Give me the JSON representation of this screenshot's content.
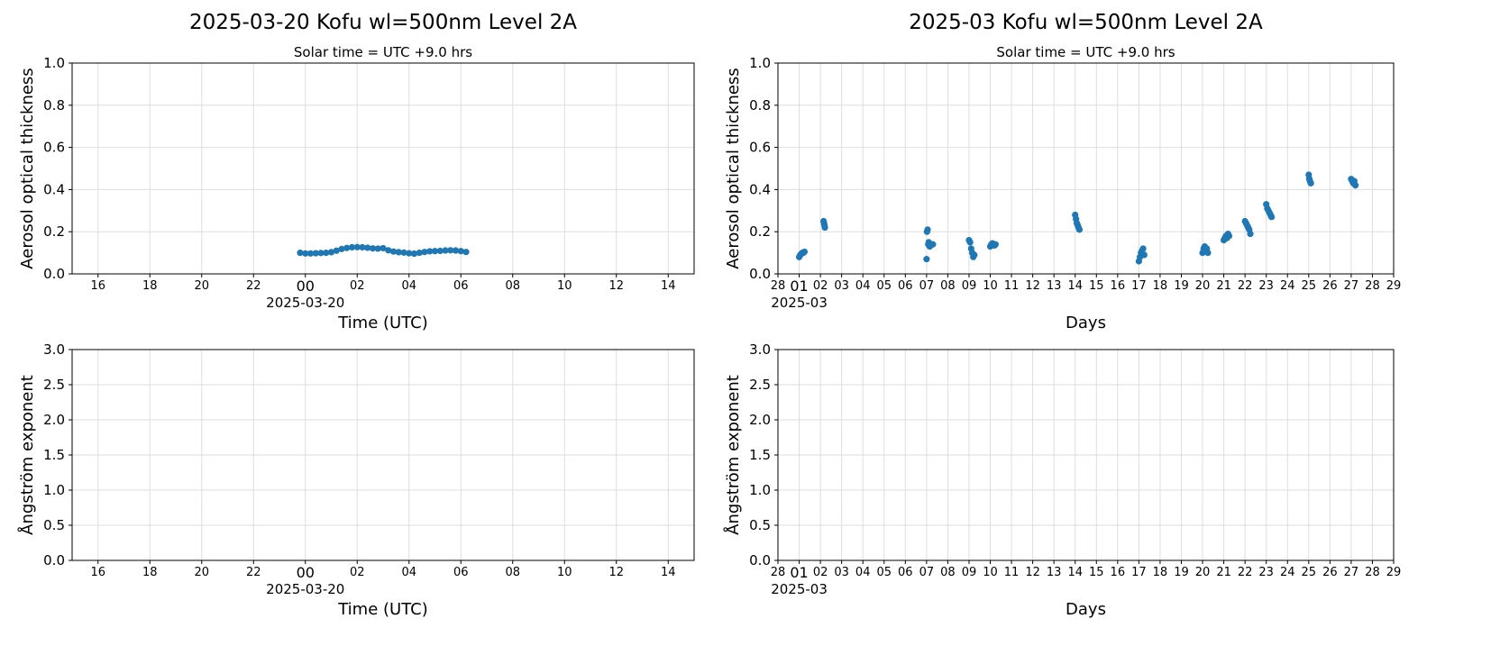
{
  "chart_data": [
    {
      "type": "scatter",
      "title": "2025-03-20  Kofu  wl=500nm  Level 2A",
      "subtitle": "Solar time = UTC +9.0 hrs",
      "xlabel": "Time (UTC)",
      "ylabel": "Aerosol optical thickness",
      "xlim": [
        -9,
        15
      ],
      "xticks": [
        {
          "value": -8,
          "label": "16"
        },
        {
          "value": -6,
          "label": "18"
        },
        {
          "value": -4,
          "label": "20"
        },
        {
          "value": -2,
          "label": "22"
        },
        {
          "value": 0,
          "label": "00"
        },
        {
          "value": 2,
          "label": "02"
        },
        {
          "value": 4,
          "label": "04"
        },
        {
          "value": 6,
          "label": "06"
        },
        {
          "value": 8,
          "label": "08"
        },
        10,
        12,
        14
      ],
      "x_tick_sublabel": {
        "value": 0,
        "label": "2025-03-20"
      },
      "ylim": [
        0,
        1
      ],
      "yticks": [
        {
          "value": 0,
          "label": "0.0"
        },
        0.2,
        0.4,
        0.6,
        0.8,
        {
          "value": 1,
          "label": "1.0"
        }
      ],
      "grid": true,
      "series": [
        {
          "color": "#1f77b4",
          "x": [
            -0.2,
            0,
            0.2,
            0.4,
            0.6,
            0.8,
            1.0,
            1.2,
            1.4,
            1.6,
            1.8,
            2.0,
            2.2,
            2.4,
            2.6,
            2.8,
            3.0,
            3.2,
            3.4,
            3.6,
            3.8,
            4.0,
            4.2,
            4.4,
            4.6,
            4.8,
            5.0,
            5.2,
            5.4,
            5.6,
            5.8,
            6.0,
            6.2
          ],
          "values": [
            0.1,
            0.097,
            0.097,
            0.098,
            0.099,
            0.1,
            0.103,
            0.11,
            0.118,
            0.123,
            0.126,
            0.127,
            0.126,
            0.124,
            0.121,
            0.12,
            0.122,
            0.112,
            0.106,
            0.103,
            0.101,
            0.098,
            0.096,
            0.1,
            0.104,
            0.107,
            0.108,
            0.109,
            0.111,
            0.112,
            0.111,
            0.108,
            0.104
          ]
        }
      ]
    },
    {
      "type": "scatter",
      "title": "2025-03  Kofu  wl=500nm  Level 2A",
      "subtitle": "Solar time = UTC +9.0 hrs",
      "xlabel": "Days",
      "ylabel": "Aerosol optical thickness",
      "xlim": [
        0,
        29
      ],
      "xticks": [
        {
          "value": 0,
          "label": "28"
        },
        {
          "value": 1,
          "label": "01"
        },
        {
          "value": 2,
          "label": "02"
        },
        {
          "value": 3,
          "label": "03"
        },
        {
          "value": 4,
          "label": "04"
        },
        {
          "value": 5,
          "label": "05"
        },
        {
          "value": 6,
          "label": "06"
        },
        {
          "value": 7,
          "label": "07"
        },
        {
          "value": 8,
          "label": "08"
        },
        {
          "value": 9,
          "label": "09"
        },
        10,
        11,
        12,
        13,
        14,
        15,
        16,
        17,
        18,
        19,
        20,
        21,
        22,
        23,
        24,
        25,
        26,
        27,
        28,
        29
      ],
      "x_tick_sublabel": {
        "value": 1,
        "label": "2025-03"
      },
      "ylim": [
        0,
        1
      ],
      "yticks": [
        {
          "value": 0,
          "label": "0.0"
        },
        0.2,
        0.4,
        0.6,
        0.8,
        {
          "value": 1,
          "label": "1.0"
        }
      ],
      "grid": true,
      "series": [
        {
          "color": "#1f77b4",
          "x": [
            1.0,
            1.05,
            1.1,
            1.15,
            1.2,
            1.25,
            2.15,
            2.17,
            2.19,
            2.21,
            7.0,
            7.02,
            7.05,
            7.08,
            7.1,
            7.15,
            7.2,
            7.25,
            7.3,
            9.0,
            9.05,
            9.1,
            9.15,
            9.2,
            9.25,
            10.0,
            10.05,
            10.1,
            10.15,
            10.2,
            10.25,
            14.0,
            14.04,
            14.08,
            14.12,
            14.16,
            14.2,
            17.0,
            17.05,
            17.1,
            17.15,
            17.2,
            17.25,
            20.0,
            20.05,
            20.1,
            20.15,
            20.2,
            20.25,
            21.0,
            21.05,
            21.1,
            21.15,
            21.2,
            21.25,
            22.0,
            22.05,
            22.1,
            22.15,
            22.2,
            22.25,
            23.0,
            23.05,
            23.1,
            23.15,
            23.2,
            23.25,
            25.0,
            25.03,
            25.06,
            25.1,
            27.0,
            27.05,
            27.1,
            27.15,
            27.2
          ],
          "values": [
            0.08,
            0.09,
            0.095,
            0.1,
            0.1,
            0.105,
            0.25,
            0.24,
            0.23,
            0.22,
            0.07,
            0.2,
            0.21,
            0.14,
            0.15,
            0.13,
            0.14,
            0.14,
            0.14,
            0.16,
            0.15,
            0.12,
            0.1,
            0.08,
            0.09,
            0.13,
            0.14,
            0.145,
            0.14,
            0.135,
            0.14,
            0.28,
            0.26,
            0.24,
            0.23,
            0.22,
            0.21,
            0.06,
            0.08,
            0.1,
            0.11,
            0.12,
            0.09,
            0.1,
            0.12,
            0.13,
            0.11,
            0.12,
            0.1,
            0.16,
            0.17,
            0.18,
            0.17,
            0.19,
            0.18,
            0.25,
            0.24,
            0.23,
            0.22,
            0.21,
            0.19,
            0.33,
            0.31,
            0.3,
            0.29,
            0.28,
            0.27,
            0.47,
            0.45,
            0.44,
            0.43,
            0.45,
            0.44,
            0.43,
            0.44,
            0.42
          ]
        }
      ]
    },
    {
      "type": "scatter",
      "xlabel": "Time (UTC)",
      "ylabel": "Ångström exponent",
      "xlim": [
        -9,
        15
      ],
      "xticks": [
        {
          "value": -8,
          "label": "16"
        },
        {
          "value": -6,
          "label": "18"
        },
        {
          "value": -4,
          "label": "20"
        },
        {
          "value": -2,
          "label": "22"
        },
        {
          "value": 0,
          "label": "00"
        },
        {
          "value": 2,
          "label": "02"
        },
        {
          "value": 4,
          "label": "04"
        },
        {
          "value": 6,
          "label": "06"
        },
        {
          "value": 8,
          "label": "08"
        },
        10,
        12,
        14
      ],
      "x_tick_sublabel": {
        "value": 0,
        "label": "2025-03-20"
      },
      "ylim": [
        0,
        3
      ],
      "yticks": [
        {
          "value": 0,
          "label": "0.0"
        },
        0.5,
        {
          "value": 1,
          "label": "1.0"
        },
        1.5,
        {
          "value": 2,
          "label": "2.0"
        },
        2.5,
        {
          "value": 3,
          "label": "3.0"
        }
      ],
      "grid": true
    },
    {
      "type": "scatter",
      "xlabel": "Days",
      "ylabel": "Ångström exponent",
      "xlim": [
        0,
        29
      ],
      "xticks": [
        {
          "value": 0,
          "label": "28"
        },
        {
          "value": 1,
          "label": "01"
        },
        {
          "value": 2,
          "label": "02"
        },
        {
          "value": 3,
          "label": "03"
        },
        {
          "value": 4,
          "label": "04"
        },
        {
          "value": 5,
          "label": "05"
        },
        {
          "value": 6,
          "label": "06"
        },
        {
          "value": 7,
          "label": "07"
        },
        {
          "value": 8,
          "label": "08"
        },
        {
          "value": 9,
          "label": "09"
        },
        10,
        11,
        12,
        13,
        14,
        15,
        16,
        17,
        18,
        19,
        20,
        21,
        22,
        23,
        24,
        25,
        26,
        27,
        28,
        29
      ],
      "x_tick_sublabel": {
        "value": 1,
        "label": "2025-03"
      },
      "ylim": [
        0,
        3
      ],
      "yticks": [
        {
          "value": 0,
          "label": "0.0"
        },
        0.5,
        {
          "value": 1,
          "label": "1.0"
        },
        1.5,
        {
          "value": 2,
          "label": "2.0"
        },
        2.5,
        {
          "value": 3,
          "label": "3.0"
        }
      ],
      "grid": true
    }
  ]
}
